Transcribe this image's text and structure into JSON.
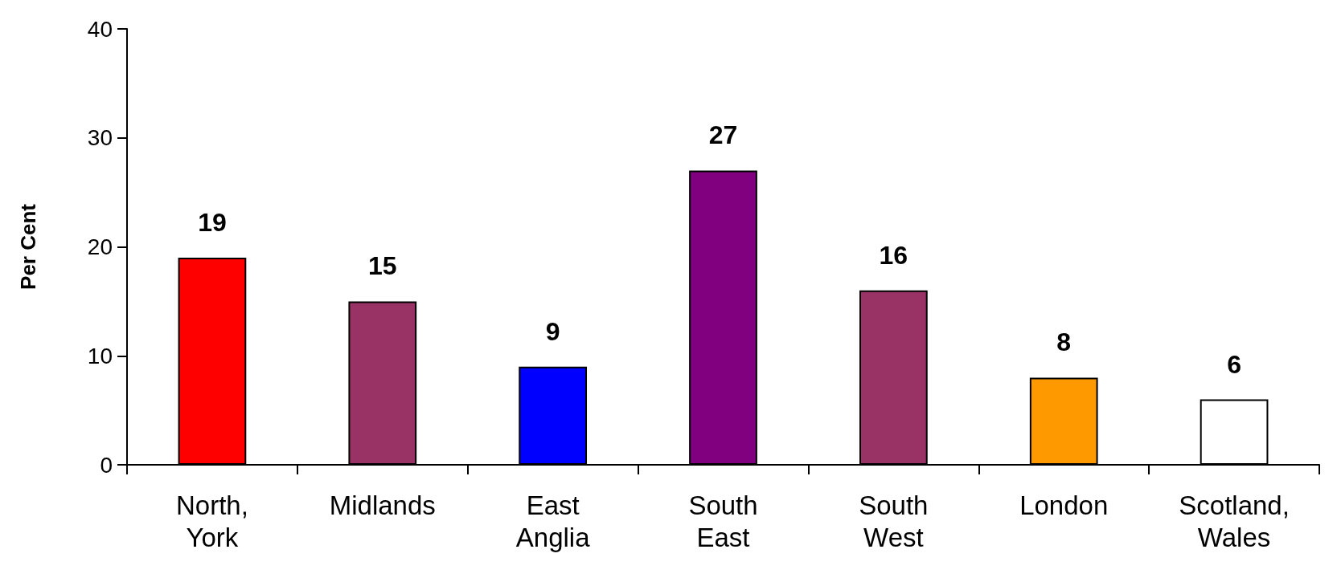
{
  "chart_data": {
    "type": "bar",
    "ylabel": "Per Cent",
    "categories": [
      "North,\nYork",
      "Midlands",
      "East\nAnglia",
      "South\nEast",
      "South\nWest",
      "London",
      "Scotland,\nWales"
    ],
    "values": [
      19,
      15,
      9,
      27,
      16,
      8,
      6
    ],
    "colors": [
      "#ff0000",
      "#993366",
      "#0000ff",
      "#800080",
      "#993366",
      "#ff9900",
      "#ffffff"
    ],
    "ylim": [
      0,
      40
    ],
    "yticks": [
      0,
      10,
      20,
      30,
      40
    ],
    "grid": false,
    "data_labels": true
  }
}
